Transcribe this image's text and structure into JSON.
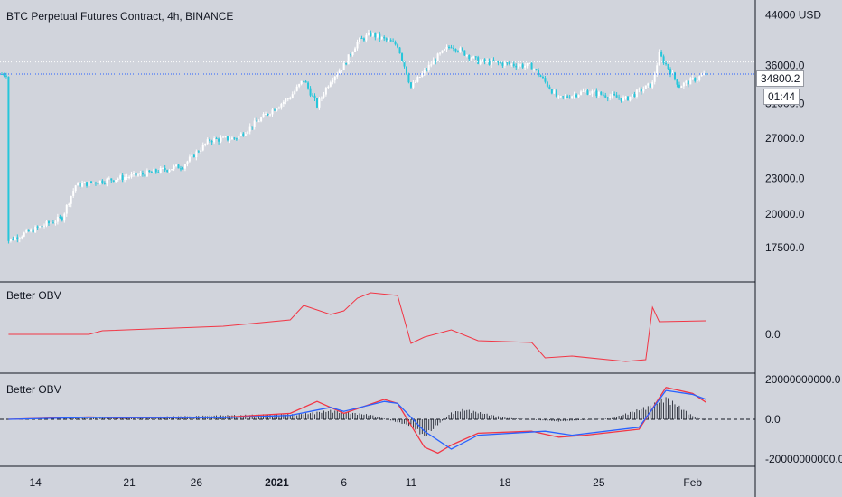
{
  "chart_title": "BTC Perpetual Futures Contract, 4h, BINANCE",
  "currency_label": "USD",
  "last_price_label": "34800.2",
  "countdown_label": "01:44",
  "indicator1_title": "Better OBV",
  "indicator2_title": "Better OBV",
  "colors": {
    "background": "#d1d4dc",
    "candle_up": "#ffffff",
    "candle_down": "#26c6da",
    "obv_line": "#f23645",
    "macd_line": "#f23645",
    "signal_line": "#2962ff",
    "histogram": "#131722"
  },
  "chart_data": [
    {
      "type": "candlestick",
      "title": "BTC Perpetual Futures Contract, 4h, BINANCE",
      "x_ticks": [
        "14",
        "21",
        "26",
        "2021",
        "6",
        "11",
        "18",
        "25",
        "Feb"
      ],
      "y_ticks": [
        17500,
        20000,
        23000,
        27000,
        31000,
        36000,
        44000
      ],
      "y_tick_labels": [
        "17500.0",
        "20000.0",
        "23000.0",
        "27000.0",
        "31000.0",
        "36000.0",
        "44000"
      ],
      "y_scale": "log",
      "ylim": [
        15500,
        46000
      ],
      "last_price": 34800.2,
      "anchors": [
        [
          "2020-12-12",
          18000
        ],
        [
          "2020-12-16",
          19700
        ],
        [
          "2020-12-17",
          22400
        ],
        [
          "2020-12-22",
          23400
        ],
        [
          "2020-12-25",
          24200
        ],
        [
          "2020-12-27",
          26800
        ],
        [
          "2020-12-29",
          27000
        ],
        [
          "2021-01-02",
          31800
        ],
        [
          "2021-01-03",
          34000
        ],
        [
          "2021-01-04",
          30700
        ],
        [
          "2021-01-05",
          34000
        ],
        [
          "2021-01-06",
          36000
        ],
        [
          "2021-01-07",
          39500
        ],
        [
          "2021-01-08",
          40800
        ],
        [
          "2021-01-10",
          39000
        ],
        [
          "2021-01-11",
          33000
        ],
        [
          "2021-01-13",
          37300
        ],
        [
          "2021-01-14",
          39000
        ],
        [
          "2021-01-16",
          36600
        ],
        [
          "2021-01-20",
          35900
        ],
        [
          "2021-01-22",
          31500
        ],
        [
          "2021-01-24",
          32500
        ],
        [
          "2021-01-27",
          31500
        ],
        [
          "2021-01-29",
          33500
        ],
        [
          "2021-01-29T12:00",
          37600
        ],
        [
          "2021-01-31",
          33200
        ],
        [
          "2021-02-02",
          34800
        ]
      ]
    },
    {
      "type": "line",
      "title": "Better OBV",
      "y_ticks": [
        0
      ],
      "y_tick_labels": [
        "0.0"
      ],
      "series": [
        {
          "values": [
            [
              "2020-12-12",
              0
            ],
            [
              "2020-12-18",
              0
            ],
            [
              "2020-12-19",
              4
            ],
            [
              "2020-12-28",
              9
            ],
            [
              "2021-01-02",
              16
            ],
            [
              "2021-01-03",
              32
            ],
            [
              "2021-01-05",
              22
            ],
            [
              "2021-01-06",
              26
            ],
            [
              "2021-01-07",
              40
            ],
            [
              "2021-01-08",
              46
            ],
            [
              "2021-01-10",
              43
            ],
            [
              "2021-01-11",
              -10
            ],
            [
              "2021-01-12",
              -3
            ],
            [
              "2021-01-14",
              5
            ],
            [
              "2021-01-16",
              -7
            ],
            [
              "2021-01-20",
              -9
            ],
            [
              "2021-01-21",
              -26
            ],
            [
              "2021-01-23",
              -24
            ],
            [
              "2021-01-27",
              -30
            ],
            [
              "2021-01-28T12:00",
              -28
            ],
            [
              "2021-01-29",
              30
            ],
            [
              "2021-01-29T12:00",
              14
            ],
            [
              "2021-02-02",
              15
            ]
          ]
        }
      ]
    },
    {
      "type": "line",
      "title": "Better OBV",
      "y_ticks": [
        20000000000,
        0,
        -20000000000
      ],
      "y_tick_labels": [
        "20000000000.0",
        "0.0",
        "-20000000000.0"
      ],
      "series": [
        {
          "values": [
            [
              "2020-12-12",
              0
            ],
            [
              "2020-12-18",
              1200000000
            ],
            [
              "2020-12-20",
              700000000
            ],
            [
              "2020-12-28",
              1000000000
            ],
            [
              "2021-01-02",
              3000000000
            ],
            [
              "2021-01-04",
              9000000000
            ],
            [
              "2021-01-06",
              3000000000
            ],
            [
              "2021-01-09",
              10000000000
            ],
            [
              "2021-01-10",
              8000000000
            ],
            [
              "2021-01-12",
              -14000000000
            ],
            [
              "2021-01-13",
              -17000000000
            ],
            [
              "2021-01-14",
              -13000000000
            ],
            [
              "2021-01-16",
              -7000000000
            ],
            [
              "2021-01-20",
              -6000000000
            ],
            [
              "2021-01-22",
              -9000000000
            ],
            [
              "2021-01-24",
              -8000000000
            ],
            [
              "2021-01-28",
              -5000000000
            ],
            [
              "2021-01-30",
              16000000000
            ],
            [
              "2021-02-01",
              13000000000
            ],
            [
              "2021-02-02",
              8500000000
            ]
          ]
        },
        {
          "values": [
            [
              "2020-12-12",
              0
            ],
            [
              "2020-12-18",
              900000000
            ],
            [
              "2020-12-20",
              800000000
            ],
            [
              "2020-12-28",
              800000000
            ],
            [
              "2021-01-02",
              2000000000
            ],
            [
              "2021-01-05",
              6000000000
            ],
            [
              "2021-01-06",
              4000000000
            ],
            [
              "2021-01-09",
              9000000000
            ],
            [
              "2021-01-10",
              8000000000
            ],
            [
              "2021-01-12",
              -6000000000
            ],
            [
              "2021-01-14",
              -15000000000
            ],
            [
              "2021-01-16",
              -8000000000
            ],
            [
              "2021-01-21",
              -6000000000
            ],
            [
              "2021-01-23",
              -8000000000
            ],
            [
              "2021-01-28",
              -4000000000
            ],
            [
              "2021-01-30",
              14500000000
            ],
            [
              "2021-02-01",
              12500000000
            ],
            [
              "2021-02-02",
              10000000000
            ]
          ]
        },
        {
          "type": "histogram",
          "values": [
            [
              "2020-12-16",
              300000000
            ],
            [
              "2021-01-03",
              2500000000
            ],
            [
              "2021-01-05",
              4000000000
            ],
            [
              "2021-01-08",
              2000000000
            ],
            [
              "2021-01-11",
              -3000000000
            ],
            [
              "2021-01-12",
              -8000000000
            ],
            [
              "2021-01-14",
              3000000000
            ],
            [
              "2021-01-15",
              4500000000
            ],
            [
              "2021-01-18",
              700000000
            ],
            [
              "2021-01-22",
              -1000000000
            ],
            [
              "2021-01-26",
              500000000
            ],
            [
              "2021-01-29",
              6500000000
            ],
            [
              "2021-01-30",
              10000000000
            ],
            [
              "2021-02-01",
              1500000000
            ],
            [
              "2021-02-02",
              -700000000
            ]
          ]
        }
      ]
    }
  ]
}
